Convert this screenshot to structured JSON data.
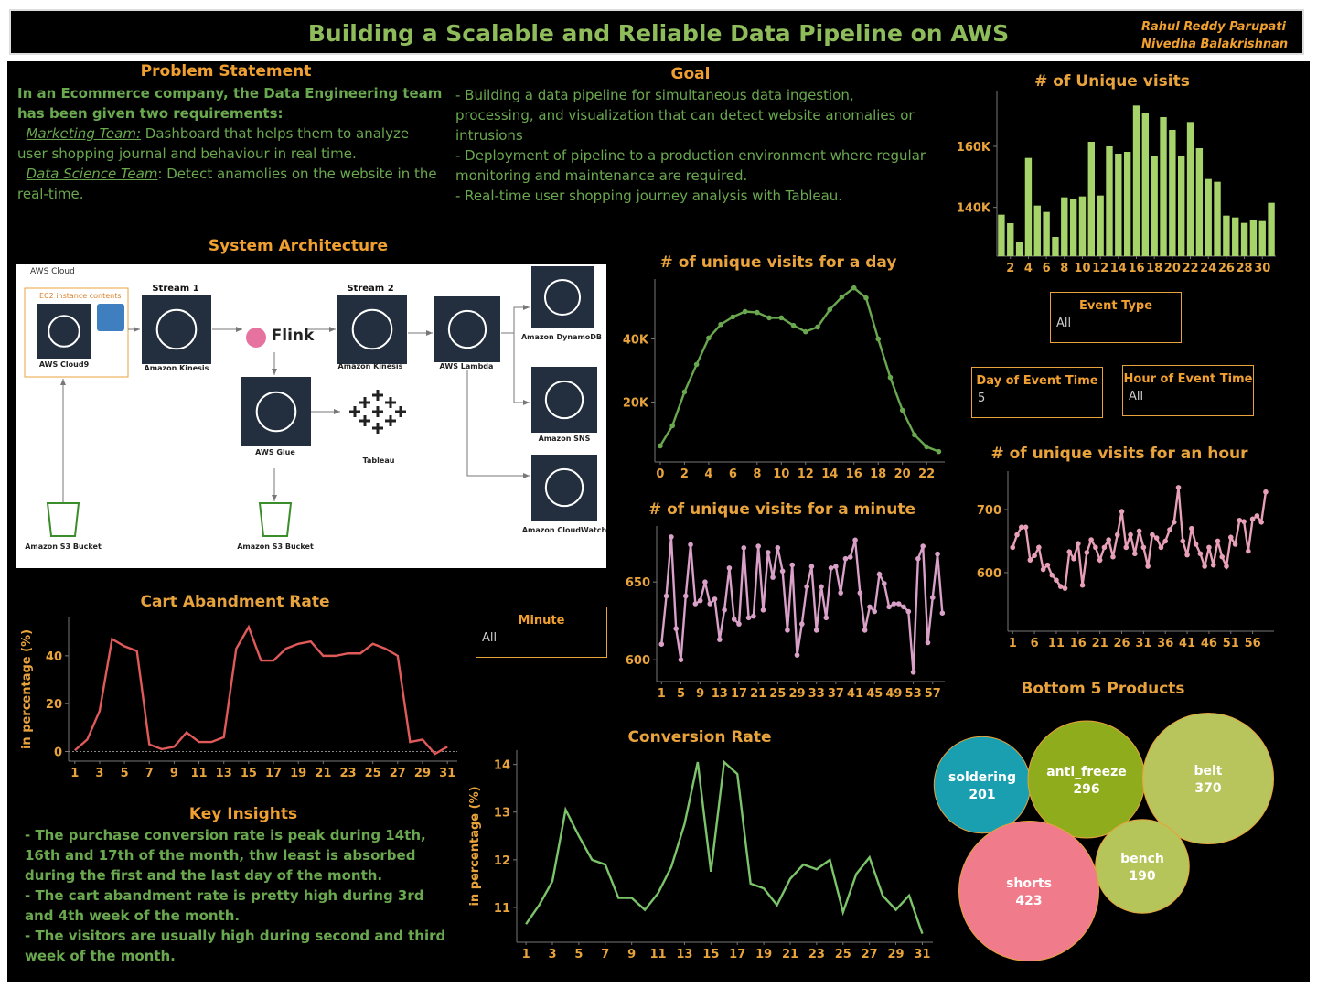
{
  "header": {
    "title": "Building a Scalable and Reliable Data Pipeline on AWS",
    "authors": [
      "Rahul Reddy Parupati",
      "Nivedha Balakrishnan"
    ]
  },
  "problem": {
    "title": "Problem Statement",
    "intro": "In an Ecommerce company, the Data Engineering team has been given two requirements:",
    "items": [
      {
        "team": "Marketing Team:",
        "text": "Dashboard that helps them to analyze user shopping journal and behaviour in real time."
      },
      {
        "team": "Data Science Team",
        "text": ": Detect anamolies on the website in the real-time."
      }
    ]
  },
  "goal": {
    "title": "Goal",
    "items": [
      "- Building a data pipeline for simultaneous data ingestion, processing, and visualization that can detect website anomalies or intrusions",
      "- Deployment of pipeline to a production environment where regular monitoring and maintenance are required.",
      "- Real-time user shopping journey analysis with Tableau."
    ]
  },
  "architecture": {
    "title": "System Architecture",
    "cloud": "AWS Cloud",
    "ec2": "EC2 instance contents",
    "streams": [
      "Stream 1",
      "Stream 2"
    ],
    "nodes": [
      {
        "label": "AWS Cloud9"
      },
      {
        "label": "Amazon Kinesis"
      },
      {
        "label": "Flink"
      },
      {
        "label": "Amazon Kinesis"
      },
      {
        "label": "AWS Lambda"
      },
      {
        "label": "Amazon DynamoDB"
      },
      {
        "label": "Amazon SNS"
      },
      {
        "label": "Amazon CloudWatch"
      },
      {
        "label": "AWS Glue"
      },
      {
        "label": "Tableau"
      },
      {
        "label": "Amazon S3 Bucket"
      },
      {
        "label": "Amazon S3 Bucket"
      }
    ]
  },
  "insights": {
    "title": "Key Insights",
    "items": [
      "- The purchase conversion rate is peak during 14th, 16th and 17th of the month, thw least is absorbed during the first and the last day of the month.",
      "- The cart abandment rate is pretty high during 3rd and 4th week of the month.",
      "- The visitors are usually high during second and third week of the month."
    ]
  },
  "filters": [
    {
      "label": "Event Type",
      "value": "All"
    },
    {
      "label": "Day of Event Time",
      "value": "5"
    },
    {
      "label": "Hour of Event Time",
      "value": "All"
    },
    {
      "label": "Minute",
      "value": "All"
    }
  ],
  "chart_data": [
    {
      "type": "bar",
      "title": "# of Unique visits",
      "color": "#a6d46a",
      "x": [
        1,
        2,
        3,
        4,
        5,
        6,
        7,
        8,
        9,
        10,
        11,
        12,
        13,
        14,
        15,
        16,
        17,
        18,
        19,
        20,
        21,
        22,
        23,
        24,
        25,
        26,
        27,
        28,
        29,
        30,
        31
      ],
      "values": [
        137600,
        134800,
        128800,
        156200,
        140600,
        138500,
        130300,
        143300,
        142700,
        143600,
        161500,
        143900,
        160000,
        157600,
        158200,
        173400,
        171000,
        157000,
        169600,
        165400,
        157000,
        168000,
        159400,
        149300,
        148400,
        137300,
        136700,
        134900,
        136000,
        135500,
        141500
      ],
      "xlim": [
        0.5,
        31.5
      ],
      "xticks": [
        2,
        4,
        6,
        8,
        10,
        12,
        14,
        16,
        18,
        20,
        22,
        24,
        26,
        28,
        30
      ],
      "ylim": [
        124000,
        178000
      ],
      "yticks": [
        {
          "value": 140000,
          "label": "140K"
        },
        {
          "value": 160000,
          "label": "160K"
        }
      ]
    },
    {
      "type": "line",
      "title": "# of unique visits for a day",
      "color": "#6aa84f",
      "markers": true,
      "x": [
        0,
        1,
        2,
        3,
        4,
        5,
        6,
        7,
        8,
        9,
        10,
        11,
        12,
        13,
        14,
        15,
        16,
        17,
        18,
        19,
        20,
        21,
        22,
        23
      ],
      "values": [
        6100,
        12500,
        23200,
        31900,
        40300,
        44600,
        47000,
        48700,
        48400,
        46700,
        46700,
        44300,
        42300,
        43800,
        49300,
        53300,
        56200,
        53000,
        40000,
        27800,
        17400,
        9600,
        5800,
        4300
      ],
      "xlim": [
        -0.45,
        23.5
      ],
      "xticks": [
        0,
        2,
        4,
        6,
        8,
        10,
        12,
        14,
        16,
        18,
        20,
        22
      ],
      "ylim": [
        1000,
        59000
      ],
      "yticks": [
        {
          "value": 20000,
          "label": "20K"
        },
        {
          "value": 40000,
          "label": "40K"
        }
      ]
    },
    {
      "type": "line",
      "title": "# of unique visits for a minute",
      "color": "#d9a0c8",
      "markers": true,
      "x": [
        1,
        2,
        3,
        4,
        5,
        6,
        7,
        8,
        9,
        10,
        11,
        12,
        13,
        14,
        15,
        16,
        17,
        18,
        19,
        20,
        21,
        22,
        23,
        24,
        25,
        26,
        27,
        28,
        29,
        30,
        31,
        32,
        33,
        34,
        35,
        36,
        37,
        38,
        39,
        40,
        41,
        42,
        43,
        44,
        45,
        46,
        47,
        48,
        49,
        50,
        51,
        52,
        53,
        54,
        55,
        56,
        57,
        58,
        59
      ],
      "values": [
        610,
        641,
        679,
        620,
        600,
        641,
        674,
        636,
        638,
        650,
        636,
        639,
        613,
        632,
        659,
        626,
        623,
        672,
        627,
        628,
        673,
        632,
        669,
        653,
        672,
        657,
        619,
        661,
        603,
        623,
        647,
        660,
        619,
        647,
        627,
        659,
        660,
        643,
        665,
        666,
        677,
        643,
        619,
        634,
        631,
        655,
        649,
        634,
        636,
        636,
        634,
        631,
        592,
        665,
        673,
        611,
        640,
        668,
        630
      ],
      "xlim": [
        0,
        59.5
      ],
      "xticks": [
        1,
        5,
        9,
        13,
        17,
        21,
        25,
        29,
        33,
        37,
        41,
        45,
        49,
        53,
        57
      ],
      "ylim": [
        586,
        686
      ],
      "yticks": [
        600,
        650
      ]
    },
    {
      "type": "line",
      "title": "# of unique visits for an hour",
      "color": "#e8a0b8",
      "markers": true,
      "x": [
        1,
        2,
        3,
        4,
        5,
        6,
        7,
        8,
        9,
        10,
        11,
        12,
        13,
        14,
        15,
        16,
        17,
        18,
        19,
        20,
        21,
        22,
        23,
        24,
        25,
        26,
        27,
        28,
        29,
        30,
        31,
        32,
        33,
        34,
        35,
        36,
        37,
        38,
        39,
        40,
        41,
        42,
        43,
        44,
        45,
        46,
        47,
        48,
        49,
        50,
        51,
        52,
        53,
        54,
        55,
        56,
        57,
        58,
        59
      ],
      "values": [
        640,
        660,
        672,
        672,
        620,
        627,
        640,
        605,
        612,
        596,
        588,
        578,
        575,
        633,
        622,
        646,
        580,
        632,
        652,
        640,
        620,
        640,
        652,
        625,
        660,
        697,
        640,
        660,
        630,
        666,
        640,
        610,
        660,
        655,
        640,
        650,
        668,
        680,
        735,
        650,
        628,
        670,
        645,
        630,
        610,
        640,
        612,
        650,
        625,
        610,
        656,
        645,
        683,
        681,
        634,
        685,
        690,
        680,
        728
      ],
      "xlim": [
        -0.1,
        60.9
      ],
      "xticks": [
        1,
        6,
        11,
        16,
        21,
        26,
        31,
        36,
        41,
        46,
        51,
        56
      ],
      "ylim": [
        507,
        761
      ],
      "yticks": [
        600,
        700
      ]
    },
    {
      "type": "line",
      "title": "Cart Abandment Rate",
      "ylabel": "in percentage (%)",
      "color": "#e05a5a",
      "zero_line": true,
      "x": [
        1,
        2,
        3,
        4,
        5,
        6,
        7,
        8,
        9,
        10,
        11,
        12,
        13,
        14,
        15,
        16,
        17,
        18,
        19,
        20,
        21,
        22,
        23,
        24,
        25,
        26,
        27,
        28,
        29,
        30,
        31
      ],
      "values": [
        0.5,
        5,
        17,
        47,
        44,
        42,
        3,
        1,
        2,
        8,
        4,
        4,
        6,
        43,
        52,
        38,
        38,
        43,
        45,
        46,
        40,
        40,
        41,
        41,
        45,
        43,
        40,
        4,
        5,
        -1,
        2
      ],
      "xlim": [
        0.5,
        31.8
      ],
      "xticks": [
        1,
        3,
        5,
        7,
        9,
        11,
        13,
        15,
        17,
        19,
        21,
        23,
        25,
        27,
        29,
        31
      ],
      "ylim": [
        -4,
        56
      ],
      "yticks": [
        0,
        20,
        40
      ]
    },
    {
      "type": "line",
      "title": "Conversion Rate",
      "ylabel": "in percentage (%)",
      "color": "#7cc46a",
      "x": [
        1,
        2,
        3,
        4,
        5,
        6,
        7,
        8,
        9,
        10,
        11,
        12,
        13,
        14,
        15,
        16,
        17,
        18,
        19,
        20,
        21,
        22,
        23,
        24,
        25,
        26,
        27,
        28,
        29,
        30,
        31
      ],
      "values": [
        10.65,
        11.05,
        11.55,
        13.05,
        12.5,
        12.0,
        11.9,
        11.2,
        11.2,
        10.95,
        11.3,
        11.85,
        12.75,
        14.05,
        11.75,
        14.05,
        13.8,
        11.5,
        11.4,
        11.05,
        11.6,
        11.9,
        11.8,
        12.0,
        10.9,
        11.7,
        12.05,
        11.25,
        10.95,
        11.25,
        10.45
      ],
      "xlim": [
        0.3,
        31.8
      ],
      "xticks": [
        1,
        3,
        5,
        7,
        9,
        11,
        13,
        15,
        17,
        19,
        21,
        23,
        25,
        27,
        29,
        31
      ],
      "ylim": [
        10.27,
        14.3
      ],
      "yticks": [
        11,
        12,
        13,
        14
      ]
    },
    {
      "type": "bubble",
      "title": "Bottom 5 Products",
      "categories": [
        "soldering",
        "anti_freeze",
        "belt",
        "bench",
        "shorts"
      ],
      "values": [
        201,
        296,
        370,
        190,
        423
      ],
      "colors": [
        "#1a9fb0",
        "#8fac1c",
        "#b8c45c",
        "#b5c55a",
        "#f07b8a"
      ]
    }
  ]
}
